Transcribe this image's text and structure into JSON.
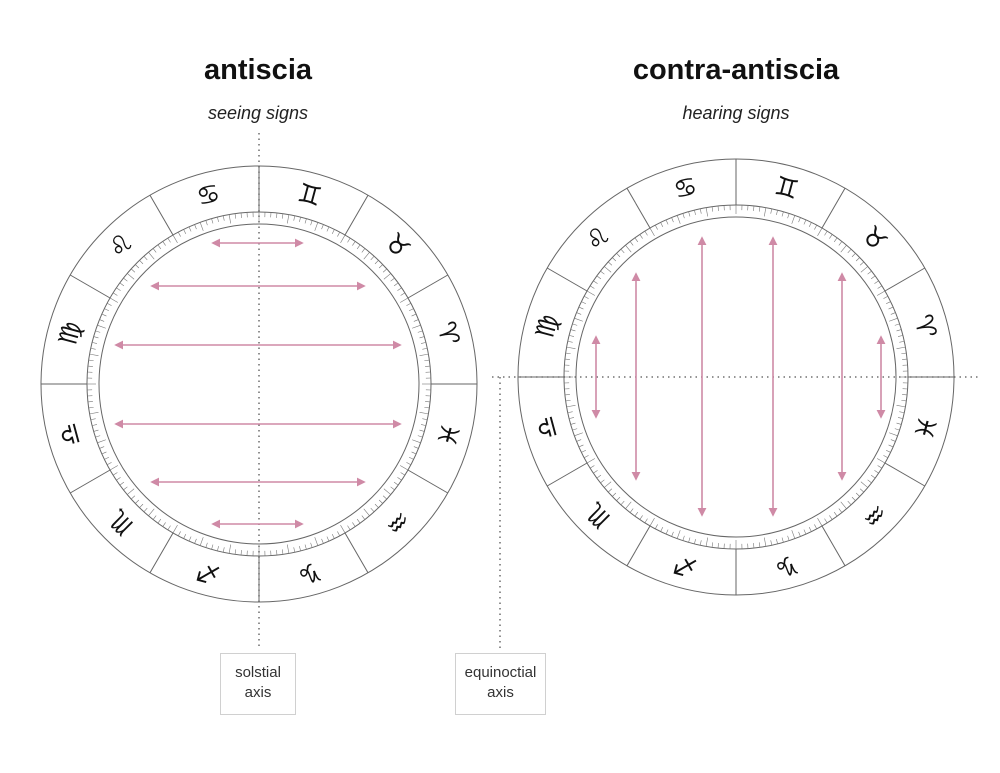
{
  "left_panel": {
    "title": "antiscia",
    "subtitle": "seeing signs",
    "axis_label_line1": "solstial",
    "axis_label_line2": "axis"
  },
  "right_panel": {
    "title": "contra-antiscia",
    "subtitle": "hearing signs",
    "axis_label_line1": "equinoctial",
    "axis_label_line2": "axis"
  },
  "colors": {
    "arrow": "#cf8aa6",
    "ring_stroke": "#666666",
    "axis_dots": "#555555",
    "glyph": "#111111"
  },
  "left_wheel_signs": [
    {
      "glyph": "♋",
      "name": "cancer-glyph"
    },
    {
      "glyph": "♊",
      "name": "gemini-glyph"
    },
    {
      "glyph": "♉",
      "name": "taurus-glyph"
    },
    {
      "glyph": "♈",
      "name": "aries-glyph"
    },
    {
      "glyph": "♓",
      "name": "pisces-glyph"
    },
    {
      "glyph": "♒",
      "name": "aquarius-glyph"
    },
    {
      "glyph": "♑",
      "name": "capricorn-glyph"
    },
    {
      "glyph": "♐",
      "name": "sagittarius-glyph"
    },
    {
      "glyph": "♏",
      "name": "scorpio-glyph"
    },
    {
      "glyph": "♎",
      "name": "libra-glyph"
    },
    {
      "glyph": "♍",
      "name": "virgo-glyph"
    },
    {
      "glyph": "♌",
      "name": "leo-glyph"
    }
  ],
  "right_wheel_signs": [
    {
      "glyph": "♋",
      "name": "cancer-glyph"
    },
    {
      "glyph": "♊",
      "name": "gemini-glyph"
    },
    {
      "glyph": "♉",
      "name": "taurus-glyph"
    },
    {
      "glyph": "♈",
      "name": "aries-glyph"
    },
    {
      "glyph": "♓",
      "name": "pisces-glyph"
    },
    {
      "glyph": "♒",
      "name": "aquarius-glyph"
    },
    {
      "glyph": "♑",
      "name": "capricorn-glyph"
    },
    {
      "glyph": "♐",
      "name": "sagittarius-glyph"
    },
    {
      "glyph": "♏",
      "name": "scorpio-glyph"
    },
    {
      "glyph": "♎",
      "name": "libra-glyph"
    },
    {
      "glyph": "♍",
      "name": "virgo-glyph"
    },
    {
      "glyph": "♌",
      "name": "leo-glyph"
    }
  ]
}
